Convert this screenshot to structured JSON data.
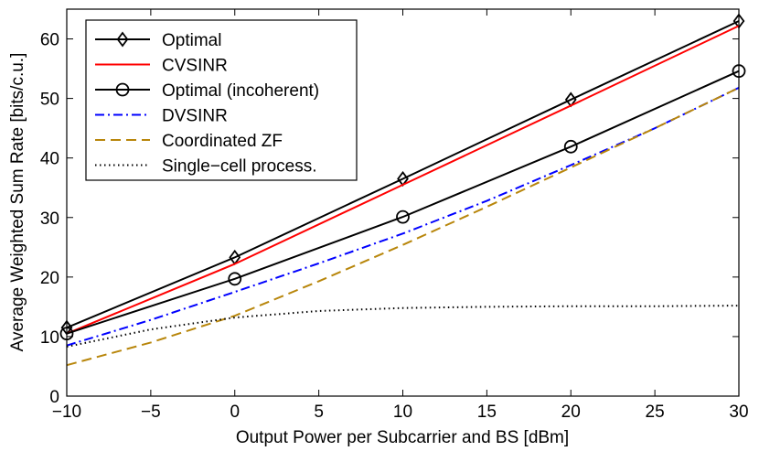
{
  "chart_data": {
    "type": "line",
    "title": "",
    "xlabel": "Output Power per Subcarrier and BS [dBm]",
    "ylabel": "Average Weighted Sum Rate [bits/c.u.]",
    "xlim": [
      -10,
      30
    ],
    "ylim": [
      0,
      65
    ],
    "xticks": [
      -10,
      -5,
      0,
      5,
      10,
      15,
      20,
      25,
      30
    ],
    "xtick_labels": [
      "−10",
      "−5",
      "0",
      "5",
      "10",
      "15",
      "20",
      "25",
      "30"
    ],
    "yticks": [
      0,
      10,
      20,
      30,
      40,
      50,
      60
    ],
    "ytick_labels": [
      "0",
      "10",
      "20",
      "30",
      "40",
      "50",
      "60"
    ],
    "grid": false,
    "legend_position": "top-left",
    "series": [
      {
        "name": "Optimal",
        "color": "#000000",
        "dash": "solid",
        "marker": "diamond",
        "x": [
          -10,
          0,
          10,
          20,
          30
        ],
        "y": [
          11.5,
          23.3,
          36.5,
          49.8,
          63.0
        ]
      },
      {
        "name": "CVSINR",
        "color": "#ff0000",
        "dash": "solid",
        "marker": "none",
        "x": [
          -10,
          0,
          10,
          20,
          30
        ],
        "y": [
          10.5,
          22.2,
          35.5,
          48.8,
          62.2
        ]
      },
      {
        "name": "Optimal (incoherent)",
        "color": "#000000",
        "dash": "solid",
        "marker": "circle",
        "x": [
          -10,
          0,
          10,
          20,
          30
        ],
        "y": [
          10.5,
          19.7,
          30.1,
          41.9,
          54.6
        ]
      },
      {
        "name": "DVSINR",
        "color": "#0000ff",
        "dash": "dashdot",
        "marker": "none",
        "x": [
          -10,
          -5,
          0,
          5,
          10,
          15,
          20,
          25,
          30
        ],
        "y": [
          8.5,
          12.8,
          17.5,
          22.3,
          27.3,
          32.8,
          38.8,
          45.0,
          51.8
        ]
      },
      {
        "name": "Coordinated ZF",
        "color": "#b8860b",
        "dash": "dashed",
        "marker": "none",
        "x": [
          -10,
          -5,
          0,
          5,
          10,
          15,
          20,
          25,
          30
        ],
        "y": [
          5.2,
          9.0,
          13.5,
          19.3,
          25.4,
          31.8,
          38.4,
          45.0,
          51.8
        ]
      },
      {
        "name": "Single−cell process.",
        "color": "#000000",
        "dash": "dotted",
        "marker": "none",
        "x": [
          -10,
          -5,
          0,
          5,
          10,
          15,
          20,
          25,
          30
        ],
        "y": [
          8.3,
          11.2,
          13.2,
          14.3,
          14.8,
          15.0,
          15.1,
          15.1,
          15.2
        ]
      }
    ]
  }
}
